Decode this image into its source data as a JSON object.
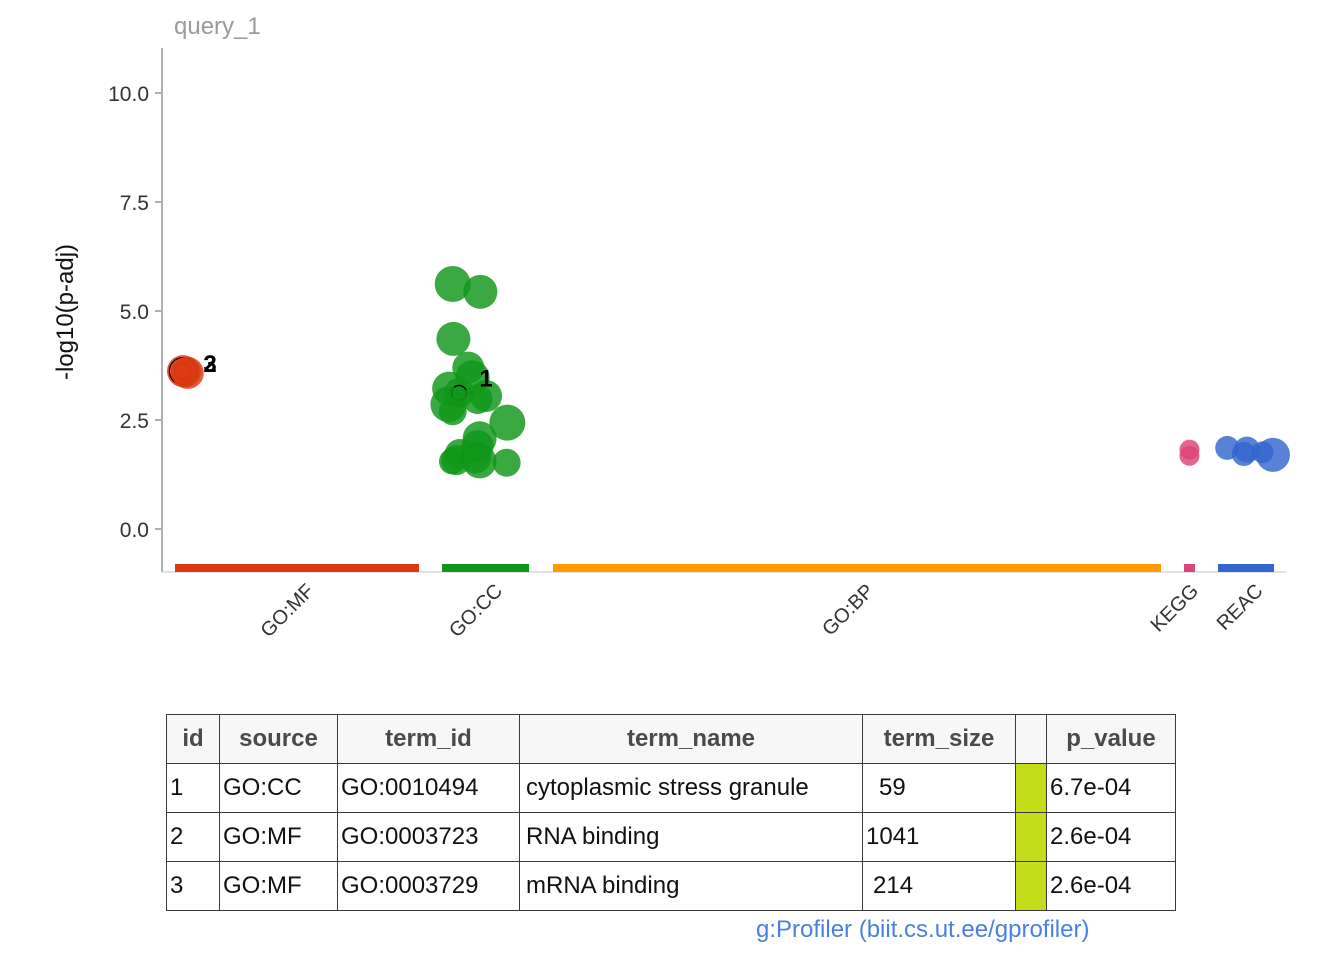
{
  "chart_data": {
    "type": "scatter",
    "title": "query_1",
    "ylabel": "-log10(p-adj)",
    "xlabel": "",
    "ylim": [
      -0.9,
      11.0
    ],
    "yticks": [
      "0.0",
      "2.5",
      "5.0",
      "7.5",
      "10.0"
    ],
    "ytick_values": [
      0,
      2.5,
      5,
      7.5,
      10
    ],
    "grid": false,
    "legend": "none",
    "sources": [
      {
        "name": "GO:MF",
        "color": "#dc3912"
      },
      {
        "name": "GO:CC",
        "color": "#109618"
      },
      {
        "name": "GO:BP",
        "color": "#ff9900"
      },
      {
        "name": "KEGG",
        "color": "#dd4477"
      },
      {
        "name": "REAC",
        "color": "#3366cc"
      }
    ],
    "points": [
      {
        "source": "GO:MF",
        "x": 0.02,
        "y": 3.62,
        "size": 16,
        "highlight": true
      },
      {
        "source": "GO:MF",
        "x": 0.12,
        "y": 3.58,
        "size": 16
      },
      {
        "source": "GO:MF",
        "x": 0.08,
        "y": 3.6,
        "size": 15
      },
      {
        "source": "GO:CC",
        "x": 0.08,
        "y": 5.62,
        "size": 18
      },
      {
        "source": "GO:CC",
        "x": 0.47,
        "y": 5.44,
        "size": 17
      },
      {
        "source": "GO:CC",
        "x": 0.09,
        "y": 4.36,
        "size": 17
      },
      {
        "source": "GO:CC",
        "x": 0.3,
        "y": 3.7,
        "size": 16
      },
      {
        "source": "GO:CC",
        "x": 0.36,
        "y": 3.48,
        "size": 17
      },
      {
        "source": "GO:CC",
        "x": 0.03,
        "y": 3.22,
        "size": 17
      },
      {
        "source": "GO:CC",
        "x": 0.17,
        "y": 3.12,
        "size": 15,
        "highlight": true
      },
      {
        "source": "GO:CC",
        "x": 0.55,
        "y": 3.05,
        "size": 16
      },
      {
        "source": "GO:CC",
        "x": 0.43,
        "y": 2.98,
        "size": 15
      },
      {
        "source": "GO:CC",
        "x": 0.02,
        "y": 2.86,
        "size": 18
      },
      {
        "source": "GO:CC",
        "x": 0.08,
        "y": 2.7,
        "size": 14
      },
      {
        "source": "GO:CC",
        "x": 0.85,
        "y": 2.44,
        "size": 18
      },
      {
        "source": "GO:CC",
        "x": 0.46,
        "y": 2.08,
        "size": 17
      },
      {
        "source": "GO:CC",
        "x": 0.43,
        "y": 1.9,
        "size": 16
      },
      {
        "source": "GO:CC",
        "x": 0.18,
        "y": 1.72,
        "size": 15
      },
      {
        "source": "GO:CC",
        "x": 0.4,
        "y": 1.64,
        "size": 16
      },
      {
        "source": "GO:CC",
        "x": 0.13,
        "y": 1.58,
        "size": 15
      },
      {
        "source": "GO:CC",
        "x": 0.07,
        "y": 1.55,
        "size": 13
      },
      {
        "source": "GO:CC",
        "x": 0.46,
        "y": 1.55,
        "size": 17
      },
      {
        "source": "GO:CC",
        "x": 0.84,
        "y": 1.52,
        "size": 14
      },
      {
        "source": "KEGG",
        "x": 0.5,
        "y": 1.82,
        "size": 10
      },
      {
        "source": "KEGG",
        "x": 0.5,
        "y": 1.68,
        "size": 10
      },
      {
        "source": "REAC",
        "x": 0.1,
        "y": 1.86,
        "size": 12
      },
      {
        "source": "REAC",
        "x": 0.48,
        "y": 1.82,
        "size": 13
      },
      {
        "source": "REAC",
        "x": 0.42,
        "y": 1.72,
        "size": 12
      },
      {
        "source": "REAC",
        "x": 0.78,
        "y": 1.76,
        "size": 11
      },
      {
        "source": "REAC",
        "x": 0.98,
        "y": 1.7,
        "size": 17
      }
    ],
    "point_labels": [
      {
        "text": "2",
        "source": "GO:MF",
        "x": 0.5,
        "y": 3.78
      },
      {
        "text": "3",
        "source": "GO:MF",
        "x": 0.5,
        "y": 3.78
      },
      {
        "text": "1",
        "source": "GO:CC",
        "x": 0.47,
        "y": 3.45
      }
    ]
  },
  "table": {
    "headers": [
      "id",
      "source",
      "term_id",
      "term_name",
      "term_size",
      "",
      "p_value"
    ],
    "rows": [
      {
        "id": "1",
        "source": "GO:CC",
        "term_id": "GO:0010494",
        "term_name": "cytoplasmic stress granule",
        "term_size": "59",
        "bar_color": "#c4dc1a",
        "p_value": "6.7e-04"
      },
      {
        "id": "2",
        "source": "GO:MF",
        "term_id": "GO:0003723",
        "term_name": "RNA binding",
        "term_size": "1041",
        "bar_color": "#c4dc1a",
        "p_value": "2.6e-04"
      },
      {
        "id": "3",
        "source": "GO:MF",
        "term_id": "GO:0003729",
        "term_name": "mRNA binding",
        "term_size": "214",
        "bar_color": "#c4dc1a",
        "p_value": "2.6e-04"
      }
    ]
  },
  "footer": "g:Profiler (biit.cs.ut.ee/gprofiler)"
}
